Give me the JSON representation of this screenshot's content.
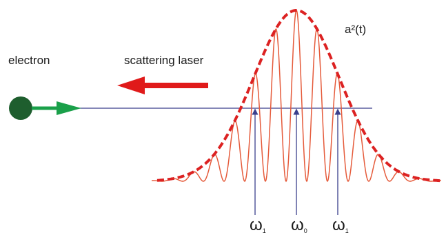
{
  "labels": {
    "electron": "electron",
    "laser": "scattering laser",
    "envelope": "a²(t)"
  },
  "frequency_markers": [
    {
      "symbol": "ω",
      "subscript": "1"
    },
    {
      "symbol": "ω",
      "subscript": "0"
    },
    {
      "symbol": "ω",
      "subscript": "1"
    }
  ],
  "colors": {
    "electron": "#1e5e2e",
    "electron_arrow": "#1aa04a",
    "laser_arrow": "#e01a1a",
    "wave": "#e55a3a",
    "envelope": "#dc2222",
    "axis": "#3a3f8c"
  }
}
